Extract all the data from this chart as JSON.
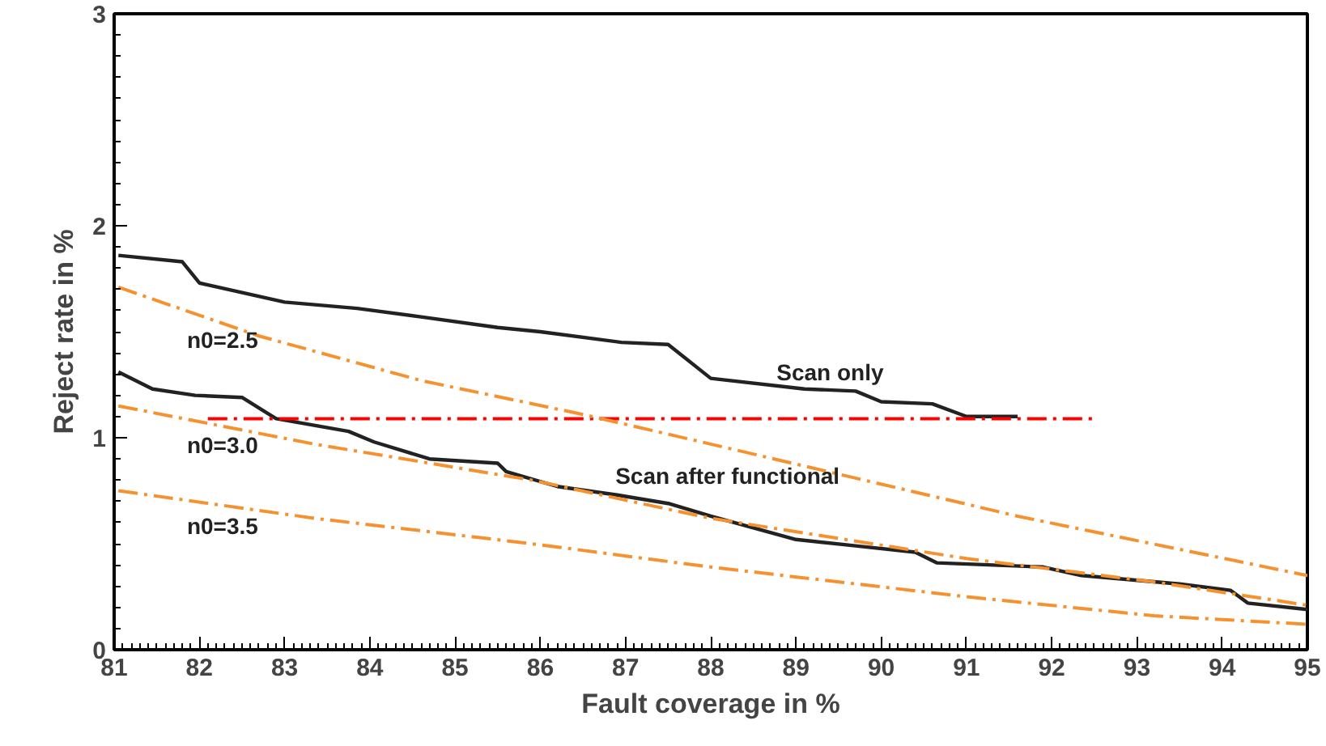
{
  "chart_data": {
    "type": "line",
    "xlabel": "Fault coverage in %",
    "ylabel": "Reject rate in %",
    "xlim": [
      81,
      95
    ],
    "ylim": [
      0,
      3
    ],
    "xticks": [
      81,
      82,
      83,
      84,
      85,
      86,
      87,
      88,
      89,
      90,
      91,
      92,
      93,
      94,
      95
    ],
    "yticks": [
      0,
      1,
      2,
      3
    ],
    "grid": false,
    "marker": "none",
    "series": [
      {
        "name": "Scan only",
        "color": "#222222",
        "line_style": "solid",
        "x": [
          81.05,
          81.8,
          82.0,
          83.0,
          83.85,
          84.6,
          85.5,
          86.0,
          86.95,
          87.5,
          88.0,
          89.1,
          89.7,
          90.0,
          90.6,
          91.0,
          91.6
        ],
        "values": [
          1.86,
          1.83,
          1.73,
          1.64,
          1.61,
          1.57,
          1.52,
          1.5,
          1.45,
          1.44,
          1.28,
          1.23,
          1.22,
          1.17,
          1.16,
          1.1,
          1.1
        ]
      },
      {
        "name": "Scan after functional",
        "color": "#222222",
        "line_style": "solid",
        "x": [
          81.05,
          81.45,
          81.95,
          82.5,
          82.9,
          83.75,
          84.05,
          84.7,
          85.5,
          85.6,
          86.2,
          86.9,
          87.5,
          88.0,
          89.0,
          89.7,
          90.4,
          90.65,
          91.9,
          92.35,
          93.5,
          94.1,
          94.3,
          95.0
        ],
        "values": [
          1.31,
          1.23,
          1.2,
          1.19,
          1.09,
          1.03,
          0.98,
          0.9,
          0.88,
          0.84,
          0.77,
          0.73,
          0.69,
          0.63,
          0.52,
          0.49,
          0.46,
          0.41,
          0.39,
          0.35,
          0.31,
          0.28,
          0.22,
          0.19
        ]
      },
      {
        "color": "#ff0000",
        "line_style": "dashed",
        "x": [
          82.1,
          92.5
        ],
        "values": [
          1.09,
          1.09
        ]
      },
      {
        "name": "n0=2.5",
        "color": "#f5922f",
        "line_style": "dashed",
        "x": [
          81.05,
          82.7,
          84.6,
          86.5,
          88.0,
          91.6,
          95.0
        ],
        "values": [
          1.71,
          1.48,
          1.27,
          1.11,
          0.97,
          0.63,
          0.35
        ]
      },
      {
        "name": "n0=3.0",
        "color": "#f5922f",
        "line_style": "dashed",
        "x": [
          81.05,
          83.35,
          85.9,
          88.0,
          91.0,
          93.2,
          95.0
        ],
        "values": [
          1.15,
          0.97,
          0.8,
          0.62,
          0.43,
          0.32,
          0.21
        ]
      },
      {
        "name": "n0=3.5",
        "color": "#f5922f",
        "line_style": "dashed",
        "x": [
          81.05,
          83.35,
          85.9,
          88.0,
          91.0,
          93.2,
          95.0
        ],
        "values": [
          0.75,
          0.62,
          0.5,
          0.39,
          0.25,
          0.16,
          0.12
        ]
      }
    ]
  }
}
